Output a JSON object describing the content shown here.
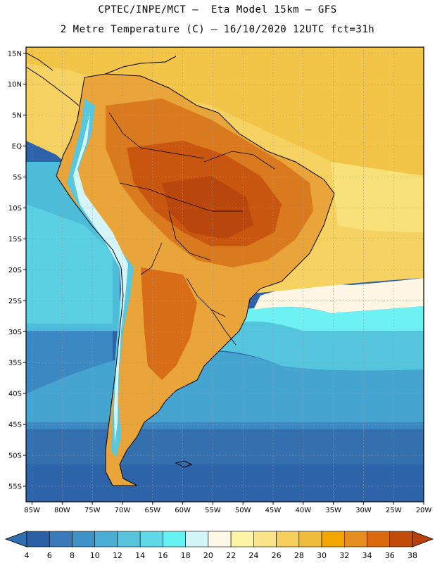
{
  "header": {
    "line1": "CPTEC/INPE/MCT –  Eta Model 15km – GFS",
    "line2": "2 Metre Temperature (C) – 16/10/2020 12UTC fct=31h"
  },
  "map": {
    "lat_labels": [
      "15N",
      "10N",
      "5N",
      "EQ",
      "5S",
      "10S",
      "15S",
      "20S",
      "25S",
      "30S",
      "35S",
      "40S",
      "45S",
      "50S",
      "55S"
    ],
    "lon_labels": [
      "85W",
      "80W",
      "75W",
      "70W",
      "65W",
      "60W",
      "55W",
      "50W",
      "45W",
      "40W",
      "35W",
      "30W",
      "25W",
      "20W"
    ],
    "lat_range": [
      -57.5,
      16
    ],
    "lon_range": [
      -86,
      -20
    ]
  },
  "colorbar": {
    "labels": [
      "4",
      "6",
      "8",
      "10",
      "12",
      "14",
      "16",
      "18",
      "20",
      "22",
      "24",
      "26",
      "28",
      "30",
      "32",
      "34",
      "36",
      "38"
    ],
    "colors": [
      "#2b5fa6",
      "#3a7ab8",
      "#3e92c6",
      "#4aaed4",
      "#57c3dc",
      "#60d8e6",
      "#66f2f2",
      "#d2f6fa",
      "#fff8e6",
      "#fdf5a5",
      "#fbe58a",
      "#f6cf5c",
      "#f0bc3c",
      "#f2a600",
      "#e58e1e",
      "#dd6a0f",
      "#c14c0a"
    ],
    "left_color": "#2f6fb0",
    "right_color": "#b8420c"
  }
}
